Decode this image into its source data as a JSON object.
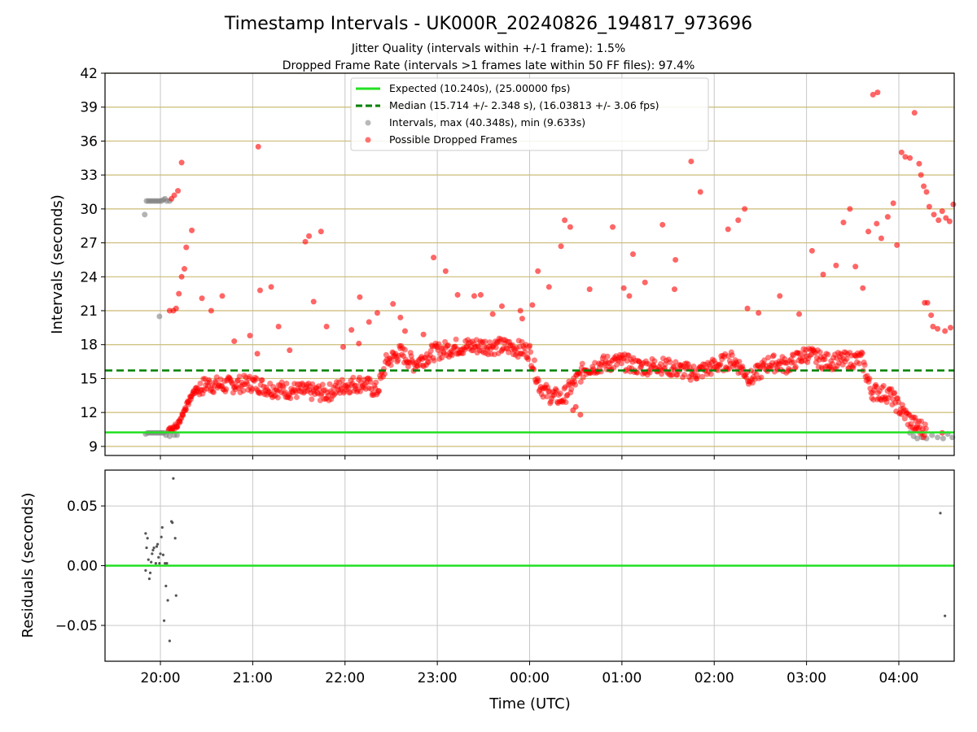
{
  "figure": {
    "title": "Timestamp Intervals - UK000R_20240826_194817_973696",
    "subtitle1": "Jitter Quality (intervals within +/-1 frame): 1.5%",
    "subtitle2": "Dropped Frame Rate (intervals >1 frames late within 50 FF files): 97.4%",
    "xlabel": "Time (UTC)"
  },
  "colors": {
    "expected": "#22e022",
    "median": "#008000",
    "intervals": "#808080",
    "dropped": "#ff0000",
    "hgrid_top": "#ccbb77",
    "grid": "#c8c8c8",
    "residual_points": "#555555"
  },
  "chart_data": [
    {
      "type": "scatter",
      "ylabel": "Intervals (seconds)",
      "xlim": [
        19.4,
        28.6
      ],
      "ylim": [
        8.2,
        42
      ],
      "yticks": [
        9,
        12,
        15,
        18,
        21,
        24,
        27,
        30,
        33,
        36,
        39,
        42
      ],
      "xticks": [
        20,
        21,
        22,
        23,
        24,
        25,
        26,
        27,
        28
      ],
      "xtick_labels": [
        "20:00",
        "21:00",
        "22:00",
        "23:00",
        "00:00",
        "01:00",
        "02:00",
        "03:00",
        "04:00"
      ],
      "legend_position": "top-center",
      "legend": [
        "Expected (10.240s), (25.00000 fps)",
        "Median (15.714 +/- 2.348 s), (16.03813 +/- 3.06 fps)",
        "Intervals, max (40.348s), min (9.633s)",
        "Possible Dropped Frames"
      ],
      "expected": 10.24,
      "median": 15.714,
      "series": [
        {
          "name": "Intervals, max (40.348s), min (9.633s)",
          "points": [
            [
              19.83,
              29.5
            ],
            [
              19.85,
              30.7
            ],
            [
              19.87,
              30.7
            ],
            [
              19.89,
              30.7
            ],
            [
              19.91,
              30.7
            ],
            [
              19.93,
              30.7
            ],
            [
              19.95,
              30.7
            ],
            [
              19.97,
              30.7
            ],
            [
              19.99,
              30.7
            ],
            [
              20.01,
              30.7
            ],
            [
              20.03,
              30.8
            ],
            [
              20.05,
              30.9
            ],
            [
              20.07,
              30.7
            ],
            [
              20.1,
              30.7
            ],
            [
              19.99,
              20.5
            ],
            [
              19.84,
              10.1
            ],
            [
              19.86,
              10.2
            ],
            [
              19.88,
              10.2
            ],
            [
              19.9,
              10.2
            ],
            [
              19.92,
              10.2
            ],
            [
              19.94,
              10.2
            ],
            [
              19.96,
              10.2
            ],
            [
              19.98,
              10.2
            ],
            [
              20.0,
              10.2
            ],
            [
              20.02,
              10.2
            ],
            [
              20.04,
              10.2
            ],
            [
              20.06,
              10.0
            ],
            [
              20.08,
              10.3
            ],
            [
              20.1,
              9.9
            ],
            [
              20.12,
              10.3
            ],
            [
              20.15,
              10.0
            ],
            [
              20.18,
              10.0
            ],
            [
              28.12,
              10.2
            ],
            [
              28.16,
              9.9
            ],
            [
              28.2,
              9.7
            ],
            [
              28.25,
              9.8
            ],
            [
              28.3,
              9.7
            ],
            [
              28.36,
              10.0
            ],
            [
              28.42,
              9.8
            ],
            [
              28.48,
              9.7
            ],
            [
              28.53,
              10.1
            ],
            [
              28.58,
              9.8
            ]
          ]
        },
        {
          "name": "Possible Dropped Frames",
          "points": [
            [
              20.1,
              21.0
            ],
            [
              20.14,
              21.0
            ],
            [
              20.17,
              21.2
            ],
            [
              20.2,
              22.5
            ],
            [
              20.23,
              24.0
            ],
            [
              20.26,
              24.7
            ],
            [
              20.28,
              26.6
            ],
            [
              20.34,
              28.1
            ],
            [
              20.23,
              34.1
            ],
            [
              20.19,
              31.6
            ],
            [
              20.15,
              31.2
            ],
            [
              20.12,
              30.9
            ],
            [
              20.09,
              10.5
            ],
            [
              20.13,
              10.4
            ],
            [
              20.18,
              10.7
            ],
            [
              20.21,
              11.2
            ],
            [
              20.24,
              11.8
            ],
            [
              20.27,
              12.4
            ],
            [
              20.3,
              12.9
            ],
            [
              20.33,
              13.4
            ],
            [
              20.36,
              13.9
            ],
            [
              20.39,
              14.2
            ],
            [
              20.45,
              22.1
            ],
            [
              20.55,
              21.0
            ],
            [
              20.67,
              22.3
            ],
            [
              20.8,
              18.3
            ],
            [
              20.97,
              18.8
            ],
            [
              21.05,
              17.2
            ],
            [
              21.06,
              35.5
            ],
            [
              21.08,
              22.8
            ],
            [
              21.2,
              23.1
            ],
            [
              21.28,
              19.6
            ],
            [
              21.4,
              17.5
            ],
            [
              21.57,
              27.1
            ],
            [
              21.61,
              27.6
            ],
            [
              21.66,
              21.8
            ],
            [
              21.74,
              28.0
            ],
            [
              21.8,
              19.6
            ],
            [
              21.98,
              17.8
            ],
            [
              22.07,
              19.3
            ],
            [
              22.15,
              18.1
            ],
            [
              22.16,
              22.2
            ],
            [
              22.26,
              20.0
            ],
            [
              22.35,
              20.8
            ],
            [
              22.52,
              21.6
            ],
            [
              22.6,
              20.4
            ],
            [
              22.65,
              19.2
            ],
            [
              22.85,
              18.9
            ],
            [
              22.96,
              25.7
            ],
            [
              23.09,
              24.5
            ],
            [
              23.22,
              22.4
            ],
            [
              23.4,
              22.3
            ],
            [
              23.47,
              22.4
            ],
            [
              23.6,
              20.7
            ],
            [
              23.7,
              21.4
            ],
            [
              23.9,
              21.0
            ],
            [
              23.92,
              20.3
            ],
            [
              24.03,
              21.5
            ],
            [
              24.09,
              24.5
            ],
            [
              24.21,
              23.1
            ],
            [
              24.34,
              26.7
            ],
            [
              24.38,
              29.0
            ],
            [
              24.44,
              28.4
            ],
            [
              24.47,
              12.2
            ],
            [
              24.5,
              12.5
            ],
            [
              24.55,
              11.8
            ],
            [
              24.65,
              22.9
            ],
            [
              24.9,
              28.4
            ],
            [
              25.02,
              23.0
            ],
            [
              25.08,
              22.3
            ],
            [
              25.12,
              26.0
            ],
            [
              25.25,
              23.5
            ],
            [
              25.44,
              28.6
            ],
            [
              25.58,
              25.5
            ],
            [
              25.57,
              22.9
            ],
            [
              25.75,
              34.2
            ],
            [
              25.85,
              31.5
            ],
            [
              26.15,
              28.2
            ],
            [
              26.26,
              29.0
            ],
            [
              26.33,
              30.0
            ],
            [
              26.36,
              21.2
            ],
            [
              26.48,
              20.8
            ],
            [
              26.71,
              22.3
            ],
            [
              26.92,
              20.7
            ],
            [
              27.06,
              26.3
            ],
            [
              27.18,
              24.2
            ],
            [
              27.32,
              25.0
            ],
            [
              27.4,
              28.8
            ],
            [
              27.47,
              30.0
            ],
            [
              27.53,
              24.9
            ],
            [
              27.61,
              23.0
            ],
            [
              27.67,
              28.0
            ],
            [
              27.76,
              28.7
            ],
            [
              27.81,
              27.4
            ],
            [
              27.88,
              29.3
            ],
            [
              27.72,
              40.1
            ],
            [
              27.77,
              40.3
            ],
            [
              27.94,
              30.5
            ],
            [
              27.98,
              26.8
            ],
            [
              28.03,
              35.0
            ],
            [
              28.07,
              34.6
            ],
            [
              28.12,
              34.5
            ],
            [
              28.17,
              38.5
            ],
            [
              28.22,
              34.0
            ],
            [
              28.24,
              33.0
            ],
            [
              28.27,
              32.0
            ],
            [
              28.3,
              31.5
            ],
            [
              28.33,
              30.2
            ],
            [
              28.38,
              29.5
            ],
            [
              28.43,
              29.0
            ],
            [
              28.47,
              29.8
            ],
            [
              28.51,
              29.2
            ],
            [
              28.55,
              28.9
            ],
            [
              28.59,
              30.4
            ],
            [
              28.28,
              21.7
            ],
            [
              28.31,
              21.7
            ],
            [
              28.35,
              20.6
            ],
            [
              28.37,
              19.6
            ],
            [
              28.42,
              19.4
            ],
            [
              28.5,
              19.2
            ],
            [
              28.56,
              19.5
            ],
            [
              28.47,
              10.2
            ],
            [
              28.18,
              10.5
            ]
          ]
        }
      ],
      "dropped_trend": [
        [
          20.1,
          10.6
        ],
        [
          20.18,
          10.8
        ],
        [
          20.26,
          12.2
        ],
        [
          20.36,
          13.8
        ],
        [
          20.5,
          14.5
        ],
        [
          20.7,
          14.4
        ],
        [
          21.0,
          14.6
        ],
        [
          21.2,
          14.1
        ],
        [
          21.5,
          13.9
        ],
        [
          21.8,
          13.7
        ],
        [
          22.0,
          14.4
        ],
        [
          22.2,
          14.6
        ],
        [
          22.35,
          13.9
        ],
        [
          22.45,
          16.5
        ],
        [
          22.6,
          17.3
        ],
        [
          22.75,
          16.3
        ],
        [
          22.95,
          17.3
        ],
        [
          23.2,
          17.8
        ],
        [
          23.5,
          17.9
        ],
        [
          23.8,
          17.8
        ],
        [
          24.0,
          17.4
        ],
        [
          24.1,
          14.5
        ],
        [
          24.2,
          13.6
        ],
        [
          24.35,
          13.2
        ],
        [
          24.5,
          14.8
        ],
        [
          24.6,
          15.9
        ],
        [
          24.8,
          16.3
        ],
        [
          25.0,
          16.5
        ],
        [
          25.2,
          16.0
        ],
        [
          25.4,
          16.2
        ],
        [
          25.6,
          15.8
        ],
        [
          25.8,
          15.5
        ],
        [
          26.0,
          16.1
        ],
        [
          26.2,
          16.7
        ],
        [
          26.4,
          15.0
        ],
        [
          26.6,
          16.4
        ],
        [
          26.8,
          16.2
        ],
        [
          27.0,
          17.2
        ],
        [
          27.2,
          16.5
        ],
        [
          27.4,
          16.6
        ],
        [
          27.6,
          16.7
        ],
        [
          27.7,
          13.9
        ],
        [
          27.9,
          13.6
        ],
        [
          28.0,
          12.5
        ],
        [
          28.15,
          11.0
        ],
        [
          28.3,
          10.4
        ]
      ]
    },
    {
      "type": "scatter",
      "ylabel": "Residuals (seconds)",
      "xlim": [
        19.4,
        28.6
      ],
      "ylim": [
        -0.08,
        0.08
      ],
      "yticks": [
        -0.05,
        0.0,
        0.05
      ],
      "ytick_labels": [
        "−0.05",
        "0.00",
        "0.05"
      ],
      "xticks": [
        20,
        21,
        22,
        23,
        24,
        25,
        26,
        27,
        28
      ],
      "zero_line": 0.0,
      "series": [
        {
          "name": "",
          "points": [
            [
              19.84,
              0.027
            ],
            [
              19.86,
              0.023
            ],
            [
              19.85,
              0.015
            ],
            [
              19.87,
              0.005
            ],
            [
              19.84,
              -0.004
            ],
            [
              19.89,
              -0.006
            ],
            [
              19.88,
              -0.011
            ],
            [
              19.9,
              0.003
            ],
            [
              19.91,
              0.01
            ],
            [
              19.92,
              0.013
            ],
            [
              19.93,
              0.015
            ],
            [
              19.95,
              0.002
            ],
            [
              19.96,
              0.016
            ],
            [
              19.97,
              0.018
            ],
            [
              19.98,
              0.007
            ],
            [
              19.99,
              0.002
            ],
            [
              20.0,
              0.01
            ],
            [
              20.01,
              0.024
            ],
            [
              20.02,
              0.032
            ],
            [
              20.03,
              0.009
            ],
            [
              20.05,
              0.002
            ],
            [
              20.07,
              0.002
            ],
            [
              20.04,
              -0.046
            ],
            [
              20.06,
              -0.017
            ],
            [
              20.08,
              -0.029
            ],
            [
              20.1,
              -0.063
            ],
            [
              20.12,
              0.037
            ],
            [
              20.13,
              0.036
            ],
            [
              20.14,
              0.073
            ],
            [
              20.16,
              0.023
            ],
            [
              20.17,
              -0.025
            ],
            [
              28.45,
              0.044
            ],
            [
              28.5,
              -0.042
            ]
          ]
        }
      ]
    }
  ]
}
